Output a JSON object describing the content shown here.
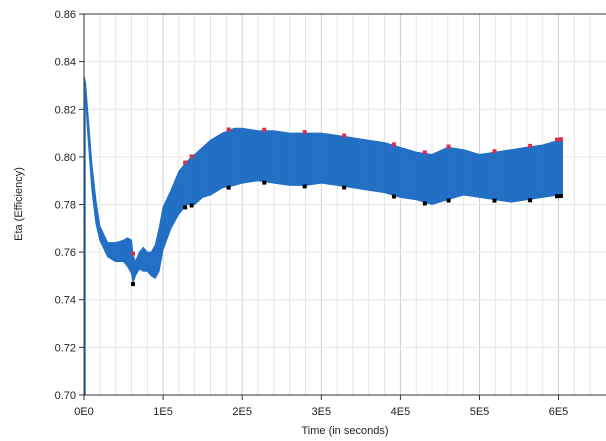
{
  "chart_data": {
    "type": "area",
    "title": "",
    "xlabel": "Time (in seconds)",
    "ylabel": "Eta (Efficiency)",
    "xlim": [
      0,
      660000
    ],
    "ylim": [
      0.7,
      0.86
    ],
    "x_ticks": [
      0,
      100000,
      200000,
      300000,
      400000,
      500000,
      600000
    ],
    "x_tick_labels": [
      "0E0",
      "1E5",
      "2E5",
      "3E5",
      "4E5",
      "5E5",
      "6E5"
    ],
    "y_ticks": [
      0.7,
      0.72,
      0.74,
      0.76,
      0.78,
      0.8,
      0.82,
      0.84,
      0.86
    ],
    "y_tick_labels": [
      "0.70",
      "0.72",
      "0.74",
      "0.76",
      "0.78",
      "0.80",
      "0.82",
      "0.84",
      "0.86"
    ],
    "grid": true,
    "series": [
      {
        "color": "#2472c8",
        "x": [
          0,
          2000,
          5000,
          10000,
          15000,
          20000,
          30000,
          40000,
          50000,
          55000,
          60000,
          62000,
          65000,
          70000,
          75000,
          80000,
          85000,
          90000,
          95000,
          100000,
          110000,
          120000,
          130000,
          140000,
          150000,
          160000,
          175000,
          190000,
          200000,
          220000,
          240000,
          260000,
          280000,
          300000,
          320000,
          340000,
          360000,
          380000,
          400000,
          420000,
          440000,
          460000,
          480000,
          500000,
          520000,
          540000,
          560000,
          580000,
          600000,
          605000
        ],
        "upper": [
          0.834,
          0.831,
          0.818,
          0.797,
          0.782,
          0.771,
          0.764,
          0.764,
          0.765,
          0.766,
          0.765,
          0.759,
          0.756,
          0.76,
          0.762,
          0.76,
          0.76,
          0.763,
          0.77,
          0.779,
          0.786,
          0.794,
          0.798,
          0.801,
          0.804,
          0.807,
          0.81,
          0.812,
          0.812,
          0.811,
          0.811,
          0.81,
          0.81,
          0.81,
          0.809,
          0.808,
          0.807,
          0.806,
          0.804,
          0.802,
          0.801,
          0.804,
          0.803,
          0.801,
          0.802,
          0.803,
          0.804,
          0.805,
          0.807,
          0.807
        ],
        "lower": [
          0.83,
          0.824,
          0.808,
          0.786,
          0.772,
          0.765,
          0.758,
          0.756,
          0.756,
          0.754,
          0.751,
          0.747,
          0.75,
          0.753,
          0.752,
          0.752,
          0.75,
          0.749,
          0.752,
          0.761,
          0.77,
          0.776,
          0.78,
          0.78,
          0.783,
          0.784,
          0.787,
          0.788,
          0.789,
          0.79,
          0.789,
          0.788,
          0.788,
          0.789,
          0.788,
          0.787,
          0.786,
          0.785,
          0.783,
          0.782,
          0.78,
          0.782,
          0.784,
          0.783,
          0.782,
          0.781,
          0.782,
          0.783,
          0.784,
          0.784
        ]
      }
    ],
    "spike_markers": {
      "colors": [
        "#d9304a",
        "#000000"
      ],
      "x": [
        62000,
        128000,
        136000,
        183000,
        228000,
        279000,
        329000,
        392000,
        431000,
        461000,
        519000,
        564000,
        598000,
        603000
      ]
    }
  }
}
